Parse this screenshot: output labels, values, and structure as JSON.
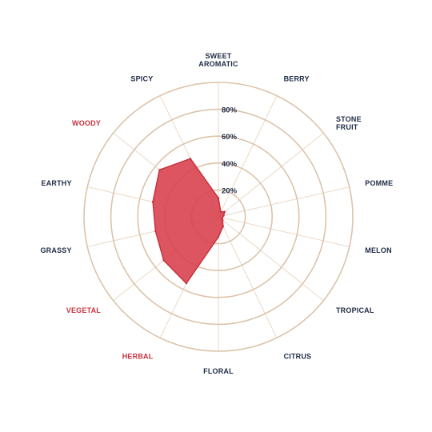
{
  "chart_data": {
    "type": "radar",
    "title": "",
    "axes": [
      {
        "label": [
          "SWEET",
          "AROMATIC"
        ],
        "highlight": false
      },
      {
        "label": [
          "BERRY"
        ],
        "highlight": false
      },
      {
        "label": [
          "STONE",
          "FRUIT"
        ],
        "highlight": false
      },
      {
        "label": [
          "POMME"
        ],
        "highlight": false
      },
      {
        "label": [
          "MELON"
        ],
        "highlight": false
      },
      {
        "label": [
          "TROPICAL"
        ],
        "highlight": false
      },
      {
        "label": [
          "CITRUS"
        ],
        "highlight": false
      },
      {
        "label": [
          "FLORAL"
        ],
        "highlight": false
      },
      {
        "label": [
          "HERBAL"
        ],
        "highlight": true
      },
      {
        "label": [
          "VEGETAL"
        ],
        "highlight": true
      },
      {
        "label": [
          "GRASSY"
        ],
        "highlight": false
      },
      {
        "label": [
          "EARTHY"
        ],
        "highlight": false
      },
      {
        "label": [
          "WOODY"
        ],
        "highlight": true
      },
      {
        "label": [
          "SPICY"
        ],
        "highlight": false
      }
    ],
    "series": [
      {
        "values": [
          14,
          4,
          6,
          4,
          3,
          4,
          8,
          15,
          55,
          52,
          48,
          50,
          56,
          48
        ]
      }
    ],
    "rings": [
      20,
      40,
      60,
      80,
      100
    ],
    "tick_labels": [
      "20%",
      "40%",
      "60%",
      "80%"
    ],
    "ylim": [
      0,
      100
    ],
    "colors": {
      "grid": "#dcc3aa",
      "spoke": "#ead9c8",
      "fill": "#d9434f",
      "stroke": "#c8323d",
      "label": "#1f2b44",
      "highlight_label": "#c8323d"
    }
  }
}
